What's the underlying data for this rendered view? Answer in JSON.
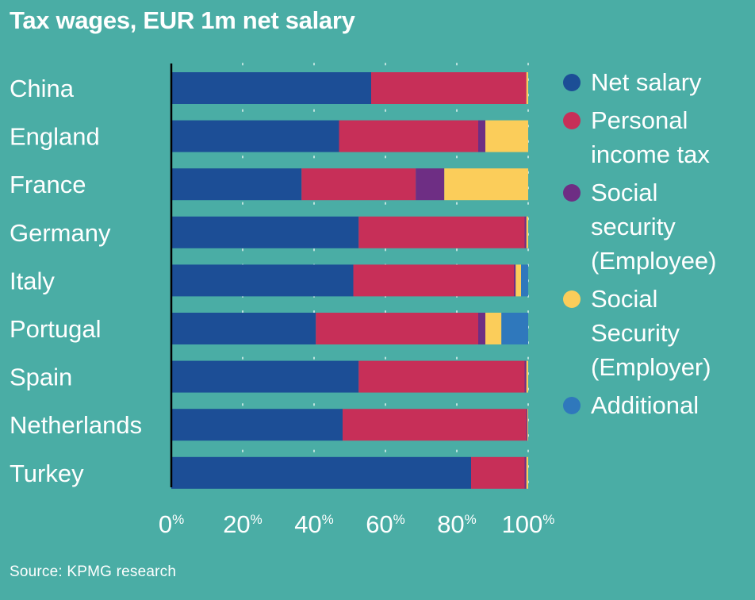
{
  "title": "Tax wages, EUR 1m net salary",
  "source": "Source: KPMG research",
  "chart_data": {
    "type": "bar",
    "orientation": "horizontal",
    "stacked": true,
    "title": "Tax wages, EUR 1m net salary",
    "categories": [
      "China",
      "England",
      "France",
      "Germany",
      "Italy",
      "Portugal",
      "Spain",
      "Netherlands",
      "Turkey"
    ],
    "series": [
      {
        "name": "Net salary",
        "color": "#1c4e96",
        "values": [
          56,
          47,
          36.5,
          52.5,
          51,
          40.5,
          52.5,
          48,
          84
        ]
      },
      {
        "name": "Personal income tax",
        "color": "#c72f58",
        "values": [
          43.5,
          39,
          32,
          46.5,
          45,
          45.5,
          46.5,
          51.5,
          15
        ]
      },
      {
        "name": "Social security (Employee)",
        "color": "#6e2e84",
        "values": [
          0,
          2,
          8,
          0.5,
          0.5,
          2,
          0.5,
          0.3,
          0.5
        ]
      },
      {
        "name": "Social Security (Employer)",
        "color": "#fbcd5a",
        "values": [
          0.5,
          12,
          23.5,
          0.5,
          1.5,
          4.5,
          0.5,
          0.2,
          0.5
        ]
      },
      {
        "name": "Additional",
        "color": "#2f78bc",
        "values": [
          0,
          0,
          0,
          0,
          2,
          7.5,
          0,
          0,
          0
        ]
      }
    ],
    "xaxis": {
      "range": [
        0,
        100
      ],
      "ticks": [
        0,
        20,
        40,
        60,
        80,
        100
      ],
      "tick_suffix": "%"
    },
    "grid": "dotted vertical",
    "legend_position": "right"
  },
  "legend": [
    {
      "label_lines": [
        "Net salary"
      ],
      "color": "#1c4e96"
    },
    {
      "label_lines": [
        "Personal",
        "income tax"
      ],
      "color": "#c72f58"
    },
    {
      "label_lines": [
        "Social",
        "security",
        "(Employee)"
      ],
      "color": "#6e2e84"
    },
    {
      "label_lines": [
        "Social",
        "Security",
        "(Employer)"
      ],
      "color": "#fbcd5a"
    },
    {
      "label_lines": [
        "Additional"
      ],
      "color": "#2f78bc"
    }
  ]
}
